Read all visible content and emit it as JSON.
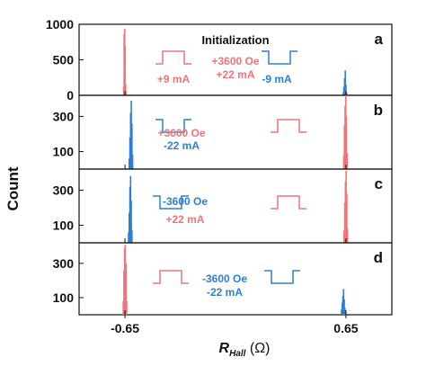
{
  "figure": {
    "xlabel_main": "R",
    "xlabel_sub": "Hall",
    "xlabel_unit": " (Ω)",
    "ylabel": "Count",
    "colors": {
      "red": "#f07478",
      "blue": "#2f7fd0",
      "axis": "#111111"
    }
  },
  "chart_data": [
    {
      "type": "histogram",
      "panel_letter": "a",
      "header": "Initialization",
      "xlim": [
        -0.92,
        0.92
      ],
      "xticks": [
        -0.65,
        0.65
      ],
      "xtick_labels": [
        "-0.65",
        "0.65"
      ],
      "ylim": [
        0,
        1000
      ],
      "yticks": [
        0,
        500,
        1000
      ],
      "ytick_labels": [
        "0",
        "500",
        "1000"
      ],
      "series": [
        {
          "color": "red",
          "bins": [
            [
              -0.658,
              120
            ],
            [
              -0.655,
              860
            ],
            [
              -0.652,
              940
            ],
            [
              -0.649,
              700
            ],
            [
              -0.646,
              160
            ],
            [
              -0.643,
              40
            ]
          ]
        },
        {
          "color": "blue",
          "bins": [
            [
              0.634,
              40
            ],
            [
              0.638,
              120
            ],
            [
              0.642,
              240
            ],
            [
              0.646,
              350
            ],
            [
              0.65,
              150
            ],
            [
              0.654,
              40
            ]
          ]
        }
      ],
      "annotations": [
        {
          "color": "red",
          "lines": [
            "+3600 Oe",
            "+22 mA"
          ],
          "pulse": "none"
        },
        {
          "color": "red",
          "lines": [
            "+9 mA"
          ],
          "pulse": "up"
        },
        {
          "color": "blue",
          "lines": [
            "-9 mA"
          ],
          "pulse": "down"
        }
      ]
    },
    {
      "type": "histogram",
      "panel_letter": "b",
      "xlim": [
        -0.92,
        0.92
      ],
      "ylim": [
        0,
        420
      ],
      "yticks": [
        100,
        300
      ],
      "ytick_labels": [
        "100",
        "300"
      ],
      "series": [
        {
          "color": "blue",
          "bins": [
            [
              -0.625,
              60
            ],
            [
              -0.621,
              180
            ],
            [
              -0.617,
              320
            ],
            [
              -0.613,
              390
            ],
            [
              -0.609,
              260
            ],
            [
              -0.605,
              80
            ]
          ]
        },
        {
          "color": "red",
          "bins": [
            [
              0.637,
              80
            ],
            [
              0.641,
              250
            ],
            [
              0.645,
              360
            ],
            [
              0.649,
              420
            ],
            [
              0.653,
              300
            ],
            [
              0.657,
              90
            ]
          ]
        }
      ],
      "annotations": [
        {
          "color": "blue",
          "lines": [
            "-22 mA"
          ],
          "pulse": "down"
        },
        {
          "color": "red",
          "lines": [
            "+3600 Oe"
          ],
          "pulse": "up"
        }
      ]
    },
    {
      "type": "histogram",
      "panel_letter": "c",
      "xlim": [
        -0.92,
        0.92
      ],
      "ylim": [
        0,
        420
      ],
      "yticks": [
        100,
        300
      ],
      "ytick_labels": [
        "100",
        "300"
      ],
      "series": [
        {
          "color": "blue",
          "bins": [
            [
              -0.629,
              60
            ],
            [
              -0.625,
              170
            ],
            [
              -0.621,
              320
            ],
            [
              -0.617,
              380
            ],
            [
              -0.613,
              240
            ],
            [
              -0.609,
              70
            ]
          ]
        },
        {
          "color": "red",
          "bins": [
            [
              0.639,
              70
            ],
            [
              0.643,
              230
            ],
            [
              0.647,
              350
            ],
            [
              0.651,
              410
            ],
            [
              0.655,
              280
            ],
            [
              0.659,
              80
            ]
          ]
        }
      ],
      "annotations": [
        {
          "color": "blue",
          "lines": [
            "-3600 Oe"
          ],
          "pulse": "down"
        },
        {
          "color": "red",
          "lines": [
            "+22 mA"
          ],
          "pulse": "up"
        }
      ]
    },
    {
      "type": "histogram",
      "panel_letter": "d",
      "xlim": [
        -0.92,
        0.92
      ],
      "ylim": [
        0,
        420
      ],
      "yticks": [
        100,
        300
      ],
      "ytick_labels": [
        "100",
        "300"
      ],
      "series": [
        {
          "color": "red",
          "bins": [
            [
              -0.66,
              80
            ],
            [
              -0.656,
              260
            ],
            [
              -0.652,
              390
            ],
            [
              -0.648,
              410
            ],
            [
              -0.644,
              300
            ],
            [
              -0.64,
              80
            ]
          ]
        },
        {
          "color": "blue",
          "bins": [
            [
              0.624,
              30
            ],
            [
              0.628,
              70
            ],
            [
              0.632,
              110
            ],
            [
              0.636,
              150
            ],
            [
              0.64,
              90
            ],
            [
              0.644,
              40
            ]
          ]
        }
      ],
      "annotations": [
        {
          "color": "red",
          "lines": [],
          "pulse": "up"
        },
        {
          "color": "blue",
          "lines": [
            "-3600 Oe",
            "-22 mA"
          ],
          "pulse": "down"
        }
      ]
    }
  ]
}
